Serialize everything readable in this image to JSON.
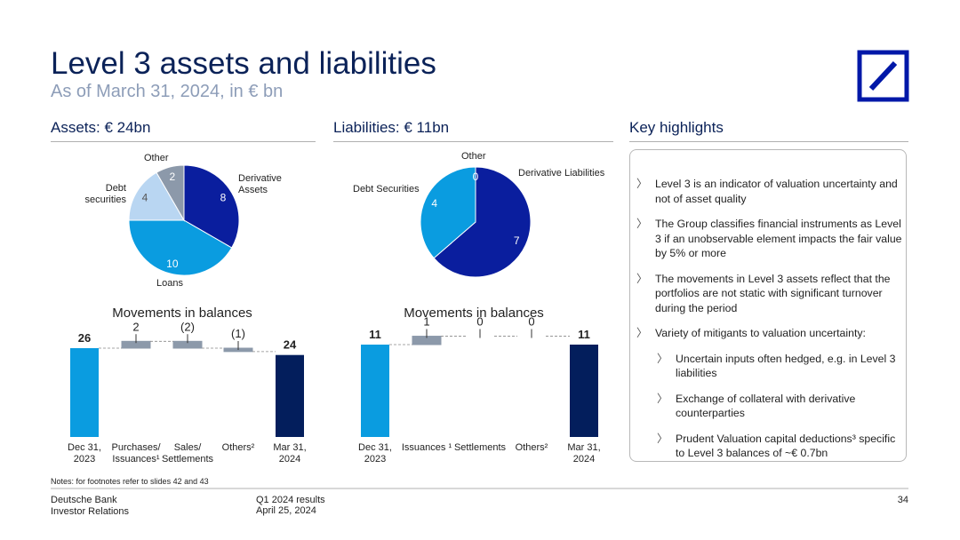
{
  "title": "Level 3 assets and liabilities",
  "subtitle": "As of March 31, 2024, in € bn",
  "highlights_header": "Key highlights",
  "highlights": [
    {
      "text": "Level 3 is an indicator of valuation uncertainty and not of asset quality"
    },
    {
      "text": "The Group classifies financial instruments as Level 3 if an unobservable element impacts the fair value by 5% or more"
    },
    {
      "text": "The movements in Level 3 assets reflect that the portfolios are not static with significant turnover during the period"
    },
    {
      "text": "Variety of mitigants to valuation uncertainty:",
      "items": [
        "Uncertain inputs often hedged, e.g. in Level 3 liabilities",
        "Exchange of collateral with derivative counterparties",
        "Prudent Valuation capital deductions³ specific to Level 3 balances of ~€ 0.7bn"
      ]
    }
  ],
  "notes": "Notes: for footnotes refer to slides 42 and 43",
  "footer": {
    "company": "Deutsche Bank",
    "department": "Investor Relations",
    "event": "Q1 2024 results",
    "date": "April 25, 2024",
    "page": "34"
  },
  "chart_data": [
    {
      "type": "pie",
      "title": "Assets: € 24bn",
      "categories": [
        "Derivative Assets",
        "Loans",
        "Debt securities",
        "Other"
      ],
      "values": [
        8,
        10,
        4,
        2
      ],
      "colors": [
        "#0a1e9e",
        "#0a9ce0",
        "#b9d6f2",
        "#8c99aa"
      ]
    },
    {
      "type": "waterfall",
      "title": "Movements in balances",
      "categories": [
        "Dec 31, 2023",
        "Purchases/ Issuances¹",
        "Sales/ Settlements",
        "Others²",
        "Mar 31, 2024"
      ],
      "values": [
        26,
        2,
        -2,
        -1,
        24
      ],
      "value_labels": [
        "26",
        "2",
        "(2)",
        "(1)",
        "24"
      ],
      "colors": [
        "#0a9ce0",
        "#8c99aa",
        "#8c99aa",
        "#8c99aa",
        "#031e5c"
      ]
    },
    {
      "type": "pie",
      "title": "Liabilities: € 11bn",
      "categories": [
        "Derivative Liabilities",
        "Debt Securities",
        "Other"
      ],
      "values": [
        7,
        4,
        0
      ],
      "colors": [
        "#0a1e9e",
        "#0a9ce0",
        "#8c99aa"
      ]
    },
    {
      "type": "waterfall",
      "title": "Movements in balances",
      "categories": [
        "Dec 31, 2023",
        "Issuances ¹",
        "Settlements",
        "Others²",
        "Mar 31, 2024"
      ],
      "values": [
        11,
        1,
        0,
        0,
        11
      ],
      "colors": [
        "#0a9ce0",
        "#8c99aa",
        "#8c99aa",
        "#8c99aa",
        "#031e5c"
      ]
    }
  ]
}
